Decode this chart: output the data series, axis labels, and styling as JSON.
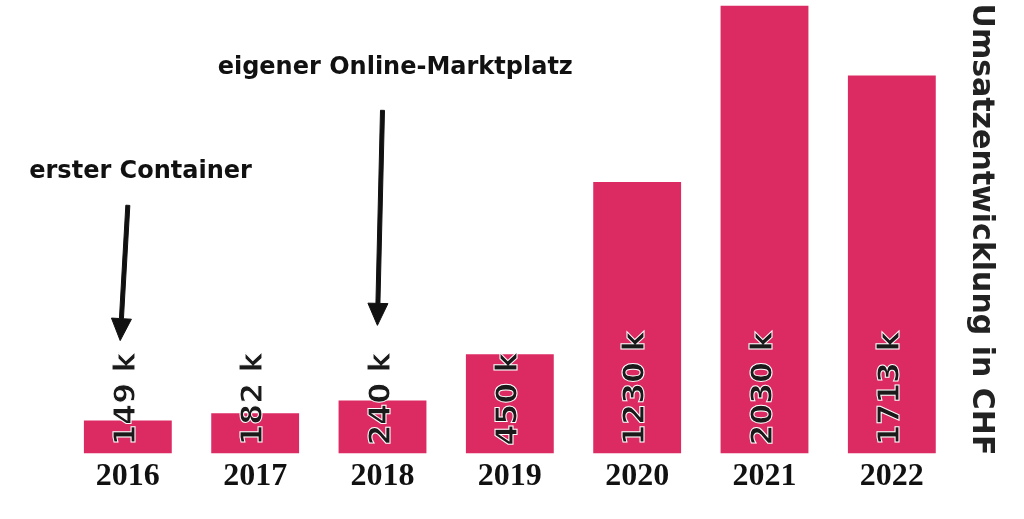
{
  "chart_data": {
    "type": "bar",
    "categories": [
      "2016",
      "2017",
      "2018",
      "2019",
      "2020",
      "2021",
      "2022"
    ],
    "values": [
      149,
      182,
      240,
      450,
      1230,
      2030,
      1713
    ],
    "value_labels": [
      "149 k",
      "182 k",
      "240 k",
      "450 k",
      "1230 k",
      "2030 k",
      "1713 k"
    ],
    "color": "#dc2a63",
    "ylabel": "Umsatzentwicklung in CHF",
    "annotations": [
      "erster Container",
      "eigener Online-Marktplatz"
    ],
    "grid": false
  }
}
